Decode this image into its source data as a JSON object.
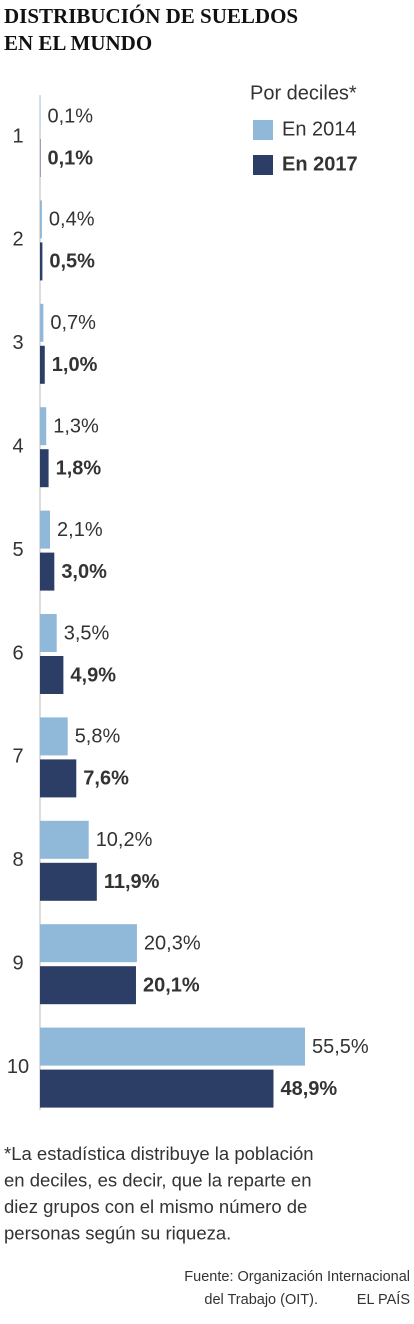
{
  "chart_data": {
    "type": "bar",
    "orientation": "horizontal",
    "title": [
      "DISTRIBUCIÓN DE SUELDOS",
      "EN EL MUNDO"
    ],
    "legend_title": "Por deciles*",
    "categories": [
      "1",
      "2",
      "3",
      "4",
      "5",
      "6",
      "7",
      "8",
      "9",
      "10"
    ],
    "series": [
      {
        "name": "En 2014",
        "color": "#8fb8d9",
        "values": [
          0.1,
          0.4,
          0.7,
          1.3,
          2.1,
          3.5,
          5.8,
          10.2,
          20.3,
          55.5
        ],
        "value_labels": [
          "0,1%",
          "0,4%",
          "0,7%",
          "1,3%",
          "2,1%",
          "3,5%",
          "5,8%",
          "10,2%",
          "20,3%",
          "55,5%"
        ]
      },
      {
        "name": "En 2017",
        "color": "#2c3e66",
        "values": [
          0.1,
          0.5,
          1.0,
          1.8,
          3.0,
          4.9,
          7.6,
          11.9,
          20.1,
          48.9
        ],
        "value_labels": [
          "0,1%",
          "0,5%",
          "1,0%",
          "1,8%",
          "3,0%",
          "4,9%",
          "7,6%",
          "11,9%",
          "20,1%",
          "48,9%"
        ]
      }
    ],
    "footnote": [
      "*La estadística distribuye la población",
      "en deciles, es decir, que la reparte en",
      "diez grupos con el mismo número de",
      "personas según su riqueza."
    ],
    "source": [
      "Fuente: Organización Internacional",
      "del Trabajo (OIT)."
    ],
    "credit": "EL PAÍS"
  }
}
